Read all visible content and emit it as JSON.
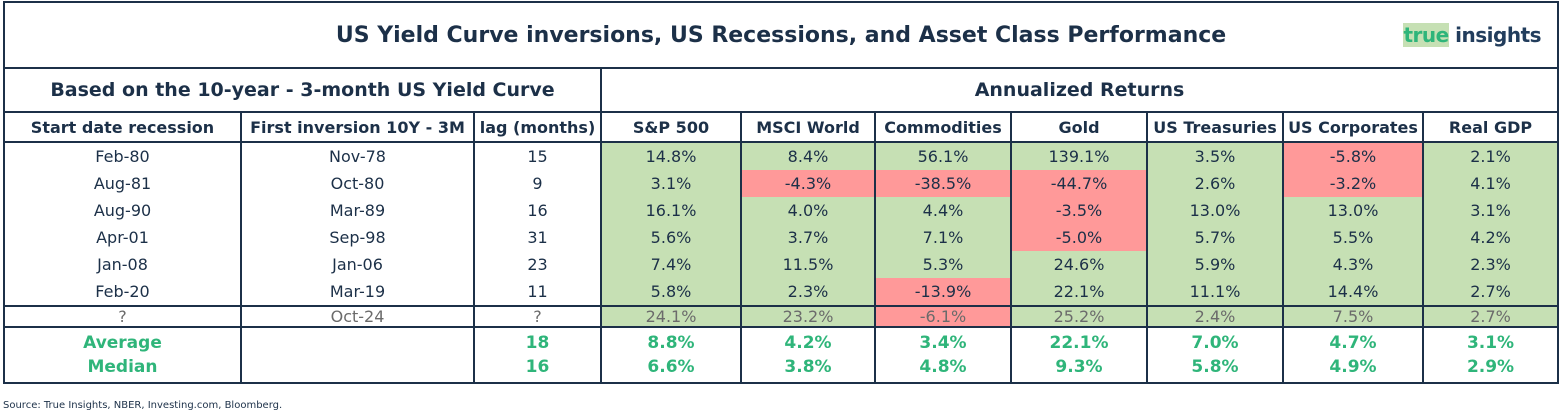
{
  "title": "US Yield Curve inversions, US Recessions, and Asset Class Performance",
  "logo": {
    "part1": "true",
    "part2": "insights"
  },
  "left_header": "Based on the 10-year - 3-month US Yield Curve",
  "right_header": "Annualized Returns",
  "colors": {
    "positive": "#c6e0b4",
    "negative": "#ff9999",
    "accent": "#2fb57a",
    "text": "#1c3048"
  },
  "chart_data": {
    "type": "table",
    "columns": [
      "Start date recession",
      "First inversion 10Y - 3M",
      "lag (months)",
      "S&P 500",
      "MSCI World",
      "Commodities",
      "Gold",
      "US Treasuries",
      "US Corporates",
      "Real GDP"
    ],
    "rows": [
      [
        "Feb-80",
        "Nov-78",
        "15",
        "14.8%",
        "8.4%",
        "56.1%",
        "139.1%",
        "3.5%",
        "-5.8%",
        "2.1%"
      ],
      [
        "Aug-81",
        "Oct-80",
        "9",
        "3.1%",
        "-4.3%",
        "-38.5%",
        "-44.7%",
        "2.6%",
        "-3.2%",
        "4.1%"
      ],
      [
        "Aug-90",
        "Mar-89",
        "16",
        "16.1%",
        "4.0%",
        "4.4%",
        "-3.5%",
        "13.0%",
        "13.0%",
        "3.1%"
      ],
      [
        "Apr-01",
        "Sep-98",
        "31",
        "5.6%",
        "3.7%",
        "7.1%",
        "-5.0%",
        "5.7%",
        "5.5%",
        "4.2%"
      ],
      [
        "Jan-08",
        "Jan-06",
        "23",
        "7.4%",
        "11.5%",
        "5.3%",
        "24.6%",
        "5.9%",
        "4.3%",
        "2.3%"
      ],
      [
        "Feb-20",
        "Mar-19",
        "11",
        "5.8%",
        "2.3%",
        "-13.9%",
        "22.1%",
        "11.1%",
        "14.4%",
        "2.7%"
      ],
      [
        "?",
        "Oct-24",
        "?",
        "24.1%",
        "23.2%",
        "-6.1%",
        "25.2%",
        "2.4%",
        "7.5%",
        "2.7%"
      ]
    ],
    "summary": [
      [
        "Average",
        "",
        "18",
        "8.8%",
        "4.2%",
        "3.4%",
        "22.1%",
        "7.0%",
        "4.7%",
        "3.1%"
      ],
      [
        "Median",
        "",
        "16",
        "6.6%",
        "3.8%",
        "4.8%",
        "9.3%",
        "5.8%",
        "4.9%",
        "2.9%"
      ]
    ]
  },
  "source": "Source: True Insights, NBER, Investing.com, Bloomberg."
}
